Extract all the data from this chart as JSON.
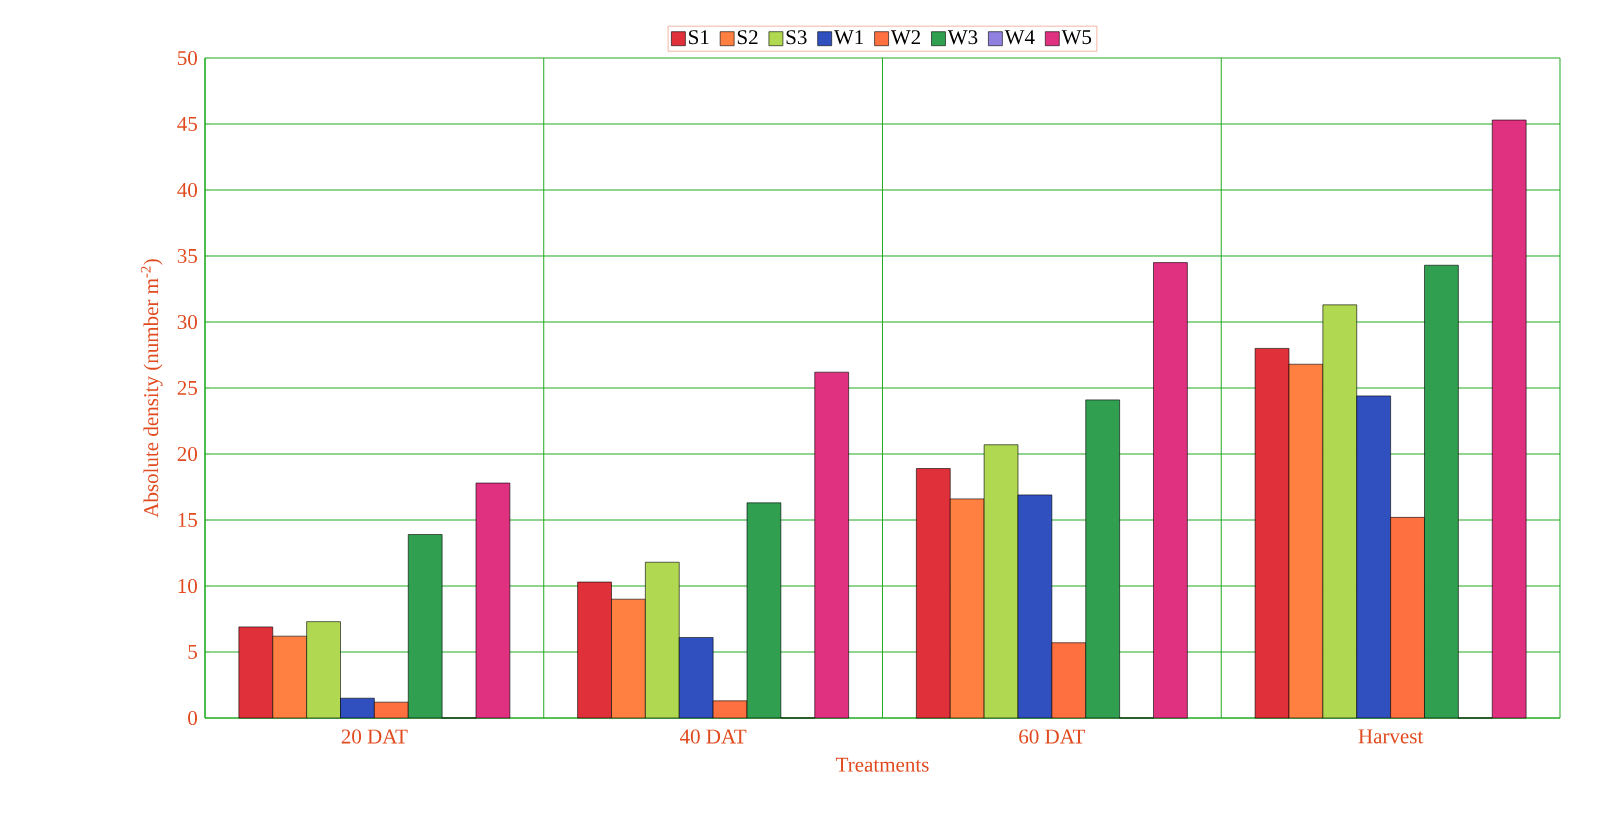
{
  "chart_data": {
    "type": "bar",
    "xlabel": "Treatments",
    "ylabel": "Absolute density (number m$^{-2}$)",
    "categories": [
      "20 DAT",
      "40 DAT",
      "60 DAT",
      "Harvest"
    ],
    "series": [
      {
        "name": "S1",
        "color": "#e0303a",
        "values": [
          6.9,
          10.3,
          18.9,
          28.0
        ]
      },
      {
        "name": "S2",
        "color": "#ff8040",
        "values": [
          6.2,
          9.0,
          16.6,
          26.8
        ]
      },
      {
        "name": "S3",
        "color": "#b0d850",
        "values": [
          7.3,
          11.8,
          20.7,
          31.3
        ]
      },
      {
        "name": "W1",
        "color": "#3050c0",
        "values": [
          1.5,
          6.1,
          16.9,
          24.4
        ]
      },
      {
        "name": "W2",
        "color": "#ff7040",
        "values": [
          1.2,
          1.3,
          5.7,
          15.2
        ]
      },
      {
        "name": "W3",
        "color": "#30a050",
        "values": [
          13.9,
          16.3,
          24.1,
          34.3
        ]
      },
      {
        "name": "W4",
        "color": "#9080e0",
        "values": [
          0,
          0,
          0,
          0
        ]
      },
      {
        "name": "W5",
        "color": "#e03080",
        "values": [
          17.8,
          26.2,
          34.5,
          45.3
        ]
      }
    ],
    "ylim": [
      0,
      50
    ],
    "yticks": [
      0,
      5,
      10,
      15,
      20,
      25,
      30,
      35,
      40,
      45,
      50
    ],
    "grid": true,
    "legend": "top"
  }
}
